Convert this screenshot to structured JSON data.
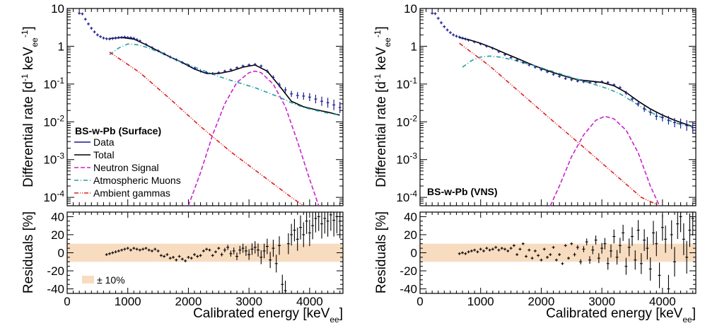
{
  "chart_data": [
    {
      "type": "line",
      "panel": "left-top",
      "title": "BS-w-Pb (Surface)",
      "ylabel": "Differential rate [d^-1 keV_ee^-1]",
      "ylabel_parts": {
        "main": "Differential rate [d",
        "sup1": "-1",
        "mid": " keV",
        "sub": "ee",
        "sup2": "-1",
        "end": "]"
      },
      "yscale": "log",
      "xlim": [
        0,
        4550
      ],
      "ylim": [
        6e-05,
        10
      ],
      "yticks": [
        {
          "exp": "-4",
          "v": 0.0001
        },
        {
          "exp": "-3",
          "v": 0.001
        },
        {
          "exp": "-2",
          "v": 0.01
        },
        {
          "exp": "-1",
          "v": 0.1
        },
        {
          "label": "1",
          "v": 1
        },
        {
          "label": "10",
          "v": 10
        }
      ],
      "legend": [
        {
          "label": "Data",
          "color": "#1a1a8c",
          "style": "solid"
        },
        {
          "label": "Total",
          "color": "#000000",
          "style": "solid"
        },
        {
          "label": "Neutron Signal",
          "color": "#cc22cc",
          "style": "dashed"
        },
        {
          "label": "Atmospheric Muons",
          "color": "#20a0a0",
          "style": "dashdot"
        },
        {
          "label": "Ambient gammas",
          "color": "#e02020",
          "style": "dashdotdot"
        }
      ],
      "series": [
        {
          "name": "Total",
          "x": [
            700,
            900,
            1100,
            1300,
            1500,
            1700,
            1900,
            2100,
            2300,
            2500,
            2700,
            2900,
            3100,
            3300,
            3500,
            3700,
            3900,
            4100,
            4300,
            4500
          ],
          "values": [
            1.6,
            1.7,
            1.55,
            1.1,
            0.75,
            0.52,
            0.37,
            0.25,
            0.19,
            0.19,
            0.22,
            0.28,
            0.32,
            0.22,
            0.09,
            0.035,
            0.025,
            0.021,
            0.018,
            0.015
          ]
        },
        {
          "name": "Neutron Signal",
          "x": [
            2000,
            2200,
            2400,
            2600,
            2800,
            3000,
            3100,
            3200,
            3400,
            3600,
            3800,
            4000,
            4150
          ],
          "values": [
            6e-05,
            0.00045,
            0.0045,
            0.03,
            0.11,
            0.2,
            0.22,
            0.2,
            0.1,
            0.025,
            0.003,
            0.0003,
            6e-05
          ]
        },
        {
          "name": "Atmospheric Muons",
          "x": [
            700,
            850,
            1000,
            1150,
            1300,
            1500,
            1700,
            1900,
            2100,
            2300,
            2500,
            2700,
            2900,
            3100,
            3300,
            3500,
            3700,
            3900,
            4100,
            4300,
            4500
          ],
          "values": [
            0.6,
            0.9,
            1.15,
            1.1,
            0.95,
            0.72,
            0.52,
            0.38,
            0.28,
            0.21,
            0.16,
            0.125,
            0.1,
            0.08,
            0.06,
            0.045,
            0.032,
            0.024,
            0.02,
            0.017,
            0.015
          ]
        },
        {
          "name": "Ambient gammas",
          "x": [
            700,
            1200,
            1700,
            2200,
            2700,
            3200,
            3700,
            3900
          ],
          "values": [
            0.7,
            0.2,
            0.04,
            0.0075,
            0.0016,
            0.0004,
            0.0001,
            6e-05
          ]
        },
        {
          "name": "Data",
          "x": [
            200,
            250,
            300,
            350,
            400,
            450,
            500,
            550,
            600,
            650,
            700,
            750,
            800,
            850,
            900,
            950,
            1000,
            1050,
            1100,
            1150,
            1200,
            1300,
            1400,
            1500,
            1600,
            1700,
            1800,
            1900,
            2000,
            2100,
            2200,
            2300,
            2400,
            2500,
            2600,
            2700,
            2800,
            2900,
            3000,
            3100,
            3200,
            3300,
            3400,
            3500,
            3600,
            3700,
            3800,
            3900,
            4000,
            4100,
            4200,
            4300,
            4400,
            4500
          ],
          "values": [
            7.5,
            7.2,
            5.2,
            3.9,
            3.0,
            2.4,
            2.0,
            1.8,
            1.65,
            1.58,
            1.56,
            1.6,
            1.65,
            1.7,
            1.72,
            1.75,
            1.7,
            1.68,
            1.62,
            1.5,
            1.38,
            1.12,
            0.92,
            0.76,
            0.63,
            0.52,
            0.44,
            0.37,
            0.31,
            0.26,
            0.22,
            0.2,
            0.19,
            0.2,
            0.22,
            0.24,
            0.27,
            0.3,
            0.32,
            0.33,
            0.3,
            0.22,
            0.15,
            0.095,
            0.07,
            0.055,
            0.05,
            0.048,
            0.045,
            0.04,
            0.035,
            0.032,
            0.028,
            0.024
          ]
        }
      ]
    },
    {
      "type": "scatter",
      "panel": "left-bottom",
      "ylabel": "Residuals [%]",
      "xlabel": "Calibrated energy [keV_ee]",
      "xlabel_parts": {
        "main": "Calibrated energy [keV",
        "sub": "ee",
        "end": "]"
      },
      "xlim": [
        0,
        4550
      ],
      "ylim": [
        -45,
        45
      ],
      "xticks": [
        "0",
        "1000",
        "2000",
        "3000",
        "4000"
      ],
      "yticks": [
        "40",
        "20",
        "0",
        "-20",
        "-40"
      ],
      "band": {
        "label": "± 10%",
        "min": -10,
        "max": 10,
        "color": "#f8dcc0"
      },
      "series": [
        {
          "name": "Residuals",
          "x": [
            650,
            700,
            750,
            800,
            850,
            900,
            950,
            1000,
            1050,
            1100,
            1150,
            1200,
            1250,
            1300,
            1350,
            1400,
            1450,
            1500,
            1550,
            1600,
            1650,
            1700,
            1750,
            1800,
            1850,
            1900,
            1950,
            2000,
            2050,
            2100,
            2150,
            2200,
            2250,
            2300,
            2350,
            2400,
            2450,
            2500,
            2550,
            2600,
            2650,
            2700,
            2750,
            2800,
            2850,
            2900,
            2950,
            3000,
            3050,
            3100,
            3150,
            3200,
            3250,
            3300,
            3350,
            3400,
            3450,
            3500,
            3550,
            3600,
            3650,
            3700,
            3750,
            3800,
            3850,
            3900,
            3950,
            4000,
            4050,
            4100,
            4150,
            4200,
            4250,
            4300,
            4350,
            4400,
            4450,
            4500
          ],
          "values": [
            -2,
            -1,
            0,
            1,
            2,
            3,
            4,
            5,
            3,
            5,
            4,
            3,
            4,
            5,
            3,
            2,
            4,
            2,
            -3,
            -4,
            -2,
            -6,
            -5,
            -8,
            -4,
            -7,
            -9,
            -5,
            -6,
            -2,
            -4,
            -3,
            2,
            4,
            3,
            -3,
            1,
            5,
            -2,
            3,
            6,
            -1,
            2,
            -4,
            3,
            5,
            2,
            -2,
            4,
            6,
            3,
            -5,
            2,
            7,
            -8,
            5,
            -12,
            8,
            -35,
            -42,
            10,
            20,
            25,
            15,
            28,
            20,
            35,
            22,
            30,
            38,
            40,
            32,
            38,
            35,
            42,
            36,
            40,
            35
          ]
        }
      ]
    },
    {
      "type": "line",
      "panel": "right-top",
      "title": "BS-w-Pb (VNS)",
      "ylabel": "Differential rate [d^-1 keV_ee^-1]",
      "yscale": "log",
      "xlim": [
        0,
        4550
      ],
      "ylim": [
        6e-05,
        10
      ],
      "series": [
        {
          "name": "Total",
          "x": [
            650,
            800,
            1000,
            1200,
            1400,
            1600,
            1800,
            2000,
            2200,
            2400,
            2600,
            2800,
            3000,
            3200,
            3400,
            3600,
            3800,
            4000,
            4200,
            4400,
            4500
          ],
          "values": [
            1.7,
            1.5,
            1.2,
            0.9,
            0.65,
            0.48,
            0.35,
            0.26,
            0.2,
            0.16,
            0.13,
            0.12,
            0.11,
            0.09,
            0.06,
            0.035,
            0.022,
            0.015,
            0.011,
            0.0085,
            0.0075
          ]
        },
        {
          "name": "Neutron Signal",
          "x": [
            2150,
            2300,
            2500,
            2700,
            2900,
            3050,
            3200,
            3400,
            3600,
            3800,
            3950
          ],
          "values": [
            6e-05,
            0.0002,
            0.0012,
            0.0045,
            0.011,
            0.014,
            0.012,
            0.006,
            0.0015,
            0.0002,
            6e-05
          ]
        },
        {
          "name": "Atmospheric Muons",
          "x": [
            700,
            850,
            1000,
            1150,
            1300,
            1500,
            1700,
            1900,
            2100,
            2300,
            2500,
            2700,
            2900,
            3100,
            3300,
            3500,
            3700,
            3900,
            4100,
            4300,
            4500
          ],
          "values": [
            0.28,
            0.42,
            0.52,
            0.55,
            0.52,
            0.45,
            0.37,
            0.3,
            0.24,
            0.19,
            0.15,
            0.12,
            0.095,
            0.075,
            0.055,
            0.035,
            0.022,
            0.015,
            0.011,
            0.0085,
            0.0075
          ]
        },
        {
          "name": "Ambient gammas",
          "x": [
            650,
            1150,
            1650,
            2150,
            2650,
            3150,
            3650,
            3950
          ],
          "values": [
            1.2,
            0.3,
            0.06,
            0.012,
            0.0025,
            0.0005,
            0.0001,
            6e-05
          ]
        },
        {
          "name": "Data",
          "x": [
            200,
            250,
            300,
            350,
            400,
            450,
            500,
            550,
            600,
            650,
            700,
            750,
            800,
            900,
            1000,
            1100,
            1200,
            1300,
            1400,
            1500,
            1600,
            1700,
            1800,
            1900,
            2000,
            2100,
            2200,
            2300,
            2400,
            2500,
            2600,
            2700,
            2800,
            2900,
            3000,
            3100,
            3200,
            3300,
            3400,
            3500,
            3600,
            3700,
            3800,
            3900,
            4000,
            4100,
            4200,
            4300,
            4400,
            4500
          ],
          "values": [
            7.5,
            7.3,
            5.5,
            4.2,
            3.3,
            2.7,
            2.3,
            2.0,
            1.85,
            1.75,
            1.65,
            1.55,
            1.45,
            1.3,
            1.15,
            1.0,
            0.88,
            0.72,
            0.6,
            0.5,
            0.43,
            0.37,
            0.32,
            0.28,
            0.24,
            0.21,
            0.18,
            0.16,
            0.14,
            0.13,
            0.12,
            0.115,
            0.11,
            0.11,
            0.115,
            0.11,
            0.095,
            0.08,
            0.058,
            0.04,
            0.03,
            0.022,
            0.018,
            0.014,
            0.013,
            0.011,
            0.0095,
            0.009,
            0.008,
            0.007
          ]
        }
      ]
    },
    {
      "type": "scatter",
      "panel": "right-bottom",
      "ylabel": "Residuals [%]",
      "xlabel": "Calibrated energy [keV_ee]",
      "xlim": [
        0,
        4550
      ],
      "ylim": [
        -45,
        45
      ],
      "band": {
        "min": -10,
        "max": 10,
        "color": "#f8dcc0"
      },
      "series": [
        {
          "name": "Residuals",
          "x": [
            650,
            700,
            750,
            800,
            850,
            900,
            950,
            1000,
            1050,
            1100,
            1150,
            1200,
            1250,
            1300,
            1350,
            1400,
            1450,
            1500,
            1550,
            1600,
            1650,
            1700,
            1750,
            1800,
            1850,
            1900,
            1950,
            2000,
            2050,
            2100,
            2150,
            2200,
            2250,
            2300,
            2350,
            2400,
            2450,
            2500,
            2550,
            2600,
            2650,
            2700,
            2750,
            2800,
            2850,
            2900,
            2950,
            3000,
            3050,
            3100,
            3150,
            3200,
            3250,
            3300,
            3350,
            3400,
            3450,
            3500,
            3550,
            3600,
            3650,
            3700,
            3750,
            3800,
            3850,
            3900,
            3950,
            4000,
            4050,
            4100,
            4150,
            4200,
            4250,
            4300,
            4350,
            4400,
            4450,
            4500
          ],
          "values": [
            -1,
            0,
            -1,
            1,
            2,
            3,
            1,
            4,
            2,
            5,
            3,
            4,
            6,
            3,
            5,
            4,
            2,
            5,
            8,
            -2,
            4,
            10,
            -4,
            3,
            -6,
            2,
            -3,
            -8,
            4,
            -5,
            -2,
            6,
            -8,
            -2,
            -12,
            8,
            -6,
            10,
            -2,
            6,
            -10,
            4,
            12,
            -8,
            3,
            14,
            -6,
            5,
            10,
            -12,
            2,
            18,
            -5,
            8,
            22,
            -15,
            6,
            18,
            -8,
            25,
            -12,
            14,
            5,
            -18,
            22,
            10,
            -25,
            28,
            15,
            -40,
            20,
            -10,
            32,
            40,
            15,
            -5,
            25,
            38
          ]
        }
      ]
    }
  ]
}
